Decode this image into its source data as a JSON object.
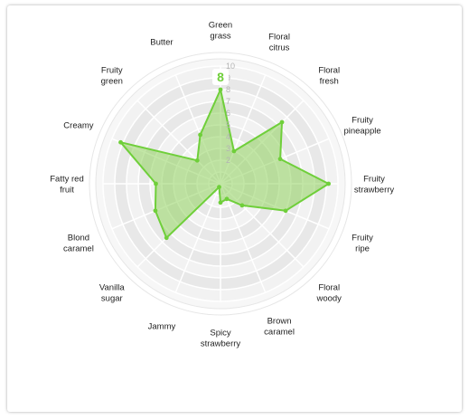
{
  "chart_data": {
    "type": "radar",
    "title": "",
    "axes": [
      "Green grass",
      "Floral citrus",
      "Floral fresh",
      "Fruity pineapple",
      "Fruity strawberry",
      "Fruity ripe",
      "Floral woody",
      "Brown caramel",
      "Spicy strawberry",
      "Jammy",
      "Vanilla sugar",
      "Blond caramel",
      "Fatty red fruit",
      "Creamy",
      "Fruity green",
      "Butter"
    ],
    "axis_lines": [
      [
        "Green",
        "grass"
      ],
      [
        "Floral",
        "citrus"
      ],
      [
        "Floral",
        "fresh"
      ],
      [
        "Fruity",
        "pineapple"
      ],
      [
        "Fruity",
        "strawberry"
      ],
      [
        "Fruity",
        "ripe"
      ],
      [
        "Floral",
        "woody"
      ],
      [
        "Brown",
        "caramel"
      ],
      [
        "Spicy",
        "strawberry"
      ],
      [
        "Jammy"
      ],
      [
        "Vanilla",
        "sugar"
      ],
      [
        "Blond",
        "caramel"
      ],
      [
        "Fatty red",
        "fruit"
      ],
      [
        "Creamy"
      ],
      [
        "Fruity",
        "green"
      ],
      [
        "Butter"
      ]
    ],
    "values": [
      8,
      3,
      7.4,
      5.5,
      9.2,
      6,
      2.6,
      1.4,
      1.6,
      0.3,
      6.5,
      6,
      5.5,
      9.2,
      2.8,
      4.5
    ],
    "rmin": 0,
    "rmax": 10,
    "ticks": [
      2,
      3,
      4,
      5,
      6,
      7,
      8,
      9,
      10
    ],
    "highlight": {
      "axis": "Green grass",
      "value": "8"
    },
    "colors": {
      "fill": "#8fd15c",
      "stroke": "#6fcf3a",
      "highlight_text": "#6fcf3a",
      "ring_light": "#f2f2f2",
      "ring_dark": "#e8e8e8",
      "grid_line": "#d9d9d9"
    }
  }
}
